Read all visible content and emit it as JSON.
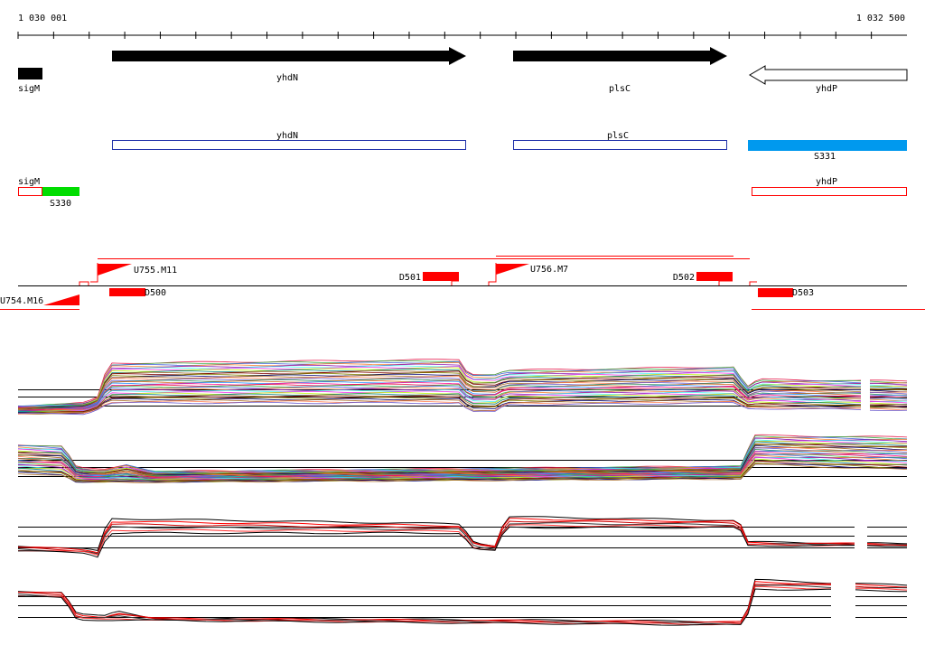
{
  "ruler": {
    "start_label": "1 030 001",
    "end_label": "1 032 500"
  },
  "genes": [
    {
      "label": "sigM",
      "strand": "+"
    },
    {
      "label": "yhdN",
      "strand": "+"
    },
    {
      "label": "plsC",
      "strand": "+"
    },
    {
      "label": "yhdP",
      "strand": "-"
    }
  ],
  "transcripts_row1": [
    {
      "label": "yhdN"
    },
    {
      "label": "plsC"
    },
    {
      "label": "S331"
    }
  ],
  "transcripts_row2": [
    {
      "label": "sigM"
    },
    {
      "label": "S330"
    },
    {
      "label": "yhdP"
    }
  ],
  "segment_labels": [
    {
      "label": "U755.M11"
    },
    {
      "label": "U754.M16"
    },
    {
      "label": "D500"
    },
    {
      "label": "D501"
    },
    {
      "label": "U756.M7"
    },
    {
      "label": "D502"
    },
    {
      "label": "D503"
    }
  ],
  "colors": {
    "transcript_outline": "#2233aa",
    "S331": "#0099ee",
    "S330": "#00dd00",
    "feature_red": "#ff0000"
  }
}
